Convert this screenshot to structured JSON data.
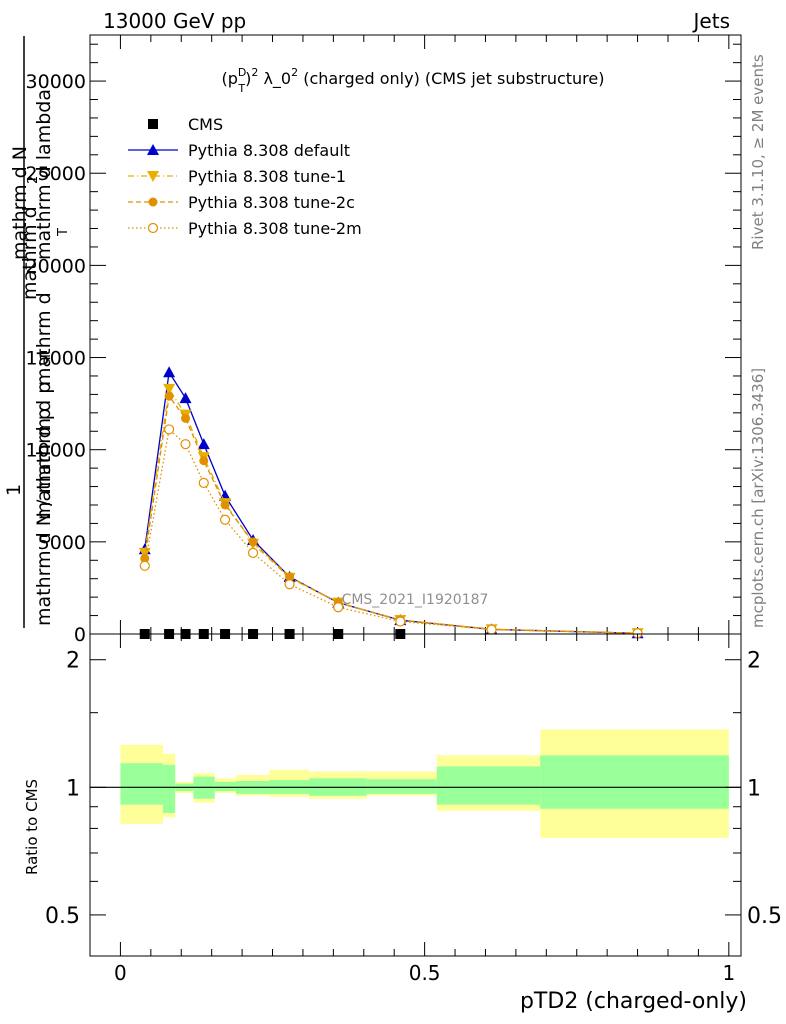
{
  "header": {
    "left": "13000 GeV pp",
    "right": "Jets"
  },
  "side_labels": {
    "rivet": "Rivet 3.1.10, ≥ 2M events",
    "mcplots": "mcplots.cern.ch [arXiv:1306.3436]"
  },
  "watermark": "CMS_2021_I1920187",
  "chart_data": [
    {
      "type": "line",
      "title": "(p_T^D)^2 λ_0^2 (charged only) (CMS jet substructure)",
      "title_parts": {
        "a": "(p",
        "sup1": "D",
        "sub1": "T",
        "b": ")",
        "sup2": "2",
        "c": " λ_0",
        "sup3": "2",
        "d": " (charged only) (CMS jet substructure)"
      },
      "xlabel": "pTD2 (charged-only)",
      "ylabel_lines": [
        "mathrm d N / mathrm d p",
        "mathrm d",
        "mathrm d lambda",
        "mathrm d",
        "T",
        "T",
        "mathrm d N",
        "1",
        "2",
        "mathrm d p"
      ],
      "xlim": [
        -0.05,
        1.02
      ],
      "ylim": [
        0,
        32500
      ],
      "xticks": [
        0,
        0.5,
        1
      ],
      "xtick_labels": [
        "0",
        "0.5",
        "1"
      ],
      "yticks": [
        0,
        5000,
        10000,
        15000,
        20000,
        25000,
        30000
      ],
      "ytick_labels": [
        "0",
        "5000",
        "10000",
        "15000",
        "20000",
        "25000",
        "30000"
      ],
      "legend_position": "top-left",
      "series": [
        {
          "name": "CMS",
          "color": "#000000",
          "marker": "square",
          "x": [
            0.04,
            0.08,
            0.107,
            0.137,
            0.172,
            0.218,
            0.278,
            0.358,
            0.46
          ],
          "y": [
            0,
            0,
            0,
            0,
            0,
            0,
            0,
            0,
            0
          ]
        },
        {
          "name": "Pythia 8.308 default",
          "color": "#0000cc",
          "marker": "triangle-up",
          "line": "solid",
          "x": [
            0.04,
            0.08,
            0.107,
            0.137,
            0.172,
            0.218,
            0.278,
            0.358,
            0.46,
            0.61,
            0.85
          ],
          "y": [
            4600,
            14200,
            12800,
            10300,
            7500,
            5100,
            3100,
            1700,
            750,
            250,
            40
          ]
        },
        {
          "name": "Pythia 8.308 tune-1",
          "color": "#e8b000",
          "marker": "triangle-down",
          "line": "dash-dot",
          "x": [
            0.04,
            0.08,
            0.107,
            0.137,
            0.172,
            0.218,
            0.278,
            0.358,
            0.46,
            0.61,
            0.85
          ],
          "y": [
            4400,
            13300,
            11900,
            9600,
            7100,
            4900,
            3050,
            1700,
            760,
            260,
            45
          ]
        },
        {
          "name": "Pythia 8.308 tune-2c",
          "color": "#e09000",
          "marker": "circle",
          "line": "dashed",
          "x": [
            0.04,
            0.08,
            0.107,
            0.137,
            0.172,
            0.218,
            0.278,
            0.358,
            0.46,
            0.61,
            0.85
          ],
          "y": [
            4100,
            12900,
            11700,
            9400,
            7000,
            5000,
            3100,
            1700,
            760,
            260,
            45
          ]
        },
        {
          "name": "Pythia 8.308 tune-2m",
          "color": "#e09000",
          "marker": "open-circle",
          "line": "dotted",
          "x": [
            0.04,
            0.08,
            0.107,
            0.137,
            0.172,
            0.218,
            0.278,
            0.358,
            0.46,
            0.61,
            0.85
          ],
          "y": [
            3700,
            11100,
            10300,
            8200,
            6200,
            4400,
            2700,
            1450,
            680,
            240,
            40
          ]
        }
      ]
    },
    {
      "type": "area",
      "ylabel": "Ratio to CMS",
      "ylim": [
        0.4,
        2.3
      ],
      "yscale": "log",
      "yticks": [
        0.5,
        1,
        2
      ],
      "ytick_labels": [
        "0.5",
        "1",
        "2"
      ],
      "reference_line": 1,
      "bands": {
        "bin_edges": [
          0.0,
          0.07,
          0.09,
          0.12,
          0.155,
          0.19,
          0.245,
          0.31,
          0.405,
          0.52,
          0.69,
          1.0
        ],
        "inner_low": [
          0.91,
          0.87,
          0.98,
          0.94,
          0.98,
          0.965,
          0.965,
          0.955,
          0.965,
          0.91,
          0.89
        ],
        "inner_high": [
          1.14,
          1.13,
          1.02,
          1.06,
          1.03,
          1.035,
          1.04,
          1.05,
          1.045,
          1.12,
          1.19
        ],
        "outer_low": [
          0.82,
          0.85,
          0.97,
          0.92,
          0.97,
          0.955,
          0.95,
          0.94,
          0.955,
          0.88,
          0.76
        ],
        "outer_high": [
          1.26,
          1.2,
          1.03,
          1.08,
          1.05,
          1.07,
          1.1,
          1.09,
          1.09,
          1.19,
          1.37
        ],
        "inner_color": "#99ff99",
        "outer_color": "#ffff99"
      }
    }
  ]
}
